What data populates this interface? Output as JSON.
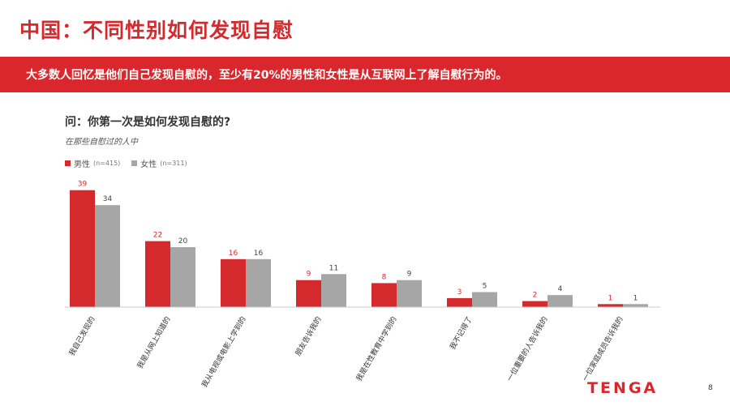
{
  "title": "中国：不同性别如何发现自慰",
  "banner": "大多数人回忆是他们自己发现自慰的，至少有20%的男性和女性是从互联网上了解自慰行为的。",
  "question": "问：你第一次是如何发现自慰的?",
  "subquestion": "在那些自慰过的人中",
  "legend": {
    "male_label": "男性",
    "male_n": "(n=415)",
    "female_label": "女性",
    "female_n": "(n=311)"
  },
  "logo_text": "TENGA",
  "page_number": "8",
  "colors": {
    "male": "#d42a2e",
    "female": "#a6a6a6",
    "accent": "#d9272d"
  },
  "chart_data": {
    "type": "bar",
    "categories": [
      "我自己发现的",
      "我是从网上知道的",
      "我从电视或电影上学到的",
      "朋友告诉我的",
      "我是在性教育中学到的",
      "我不记得了",
      "一位重要的人告诉我的",
      "一位家庭成员告诉我的"
    ],
    "series": [
      {
        "name": "男性",
        "values": [
          39,
          22,
          16,
          9,
          8,
          3,
          2,
          1
        ]
      },
      {
        "name": "女性",
        "values": [
          34,
          20,
          16,
          11,
          9,
          5,
          4,
          1
        ]
      }
    ],
    "ylim": [
      0,
      40
    ],
    "grid": false,
    "legend_position": "top-left"
  }
}
